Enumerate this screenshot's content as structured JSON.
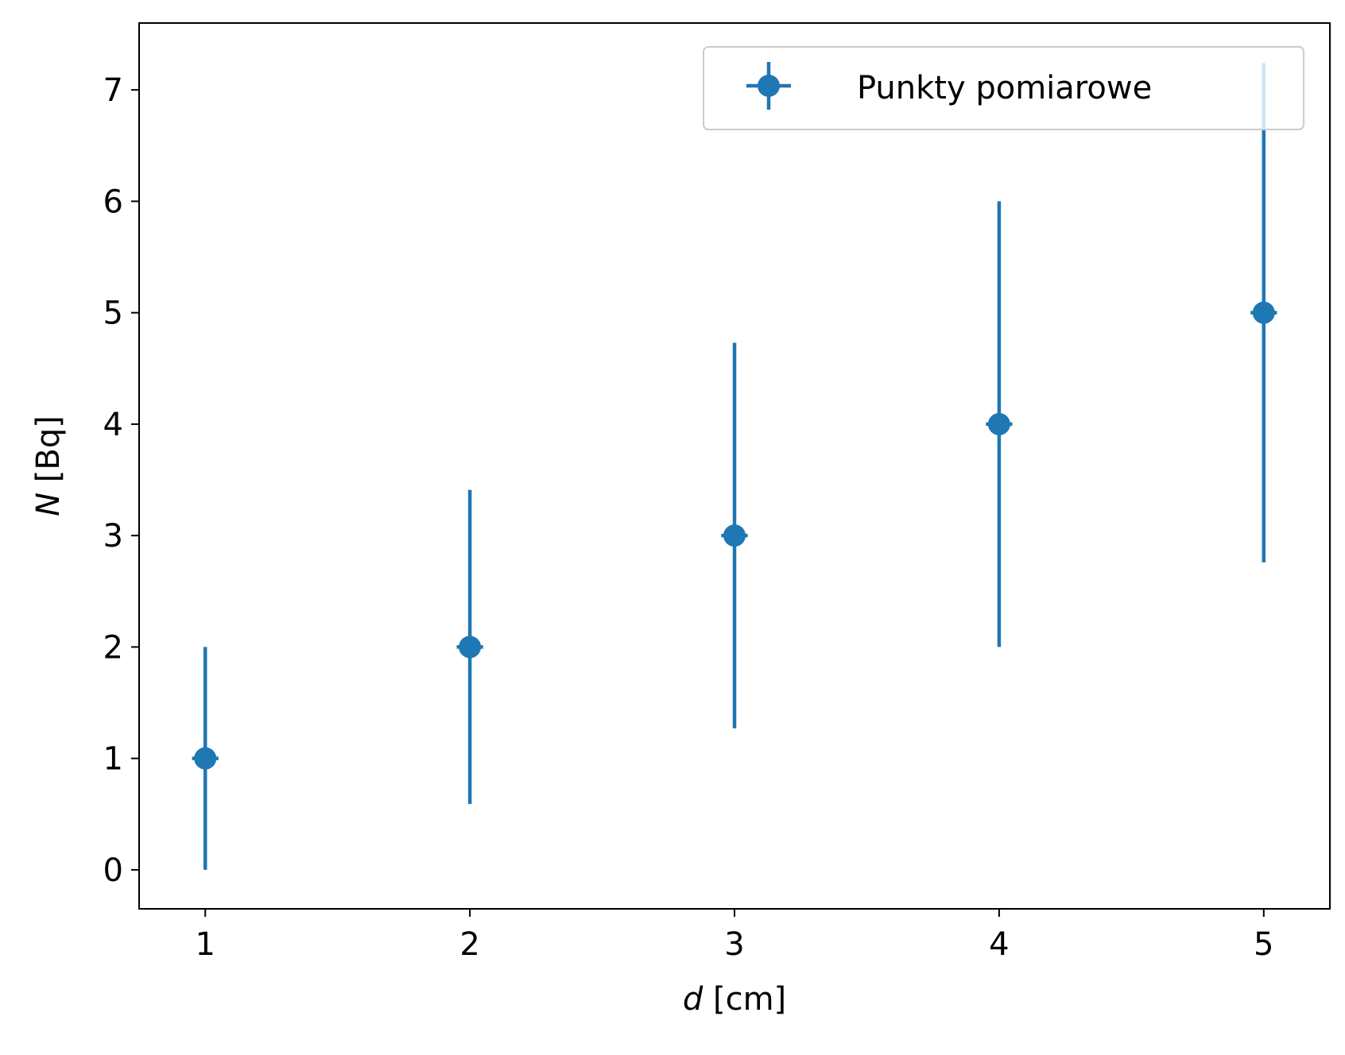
{
  "chart_data": {
    "type": "scatter",
    "title": "",
    "xlabel_var": "d",
    "xlabel_unit": " [cm]",
    "ylabel_var": "N",
    "ylabel_unit": " [Bq]",
    "xlim": [
      0.75,
      5.25
    ],
    "ylim": [
      -0.35,
      7.6
    ],
    "xticks": [
      "1",
      "2",
      "3",
      "4",
      "5"
    ],
    "yticks": [
      "0",
      "1",
      "2",
      "3",
      "4",
      "5",
      "6",
      "7"
    ],
    "grid": false,
    "legend_position": "top-right",
    "series": [
      {
        "name": "Punkty pomiarowe",
        "color": "#1f77b4",
        "marker": "circle",
        "x": [
          1,
          2,
          3,
          4,
          5
        ],
        "y": [
          1,
          2,
          3,
          4,
          5
        ],
        "yerr": [
          1.0,
          1.41,
          1.73,
          2.0,
          2.24
        ],
        "xerr": [
          0.05,
          0.05,
          0.05,
          0.05,
          0.05
        ]
      }
    ]
  }
}
